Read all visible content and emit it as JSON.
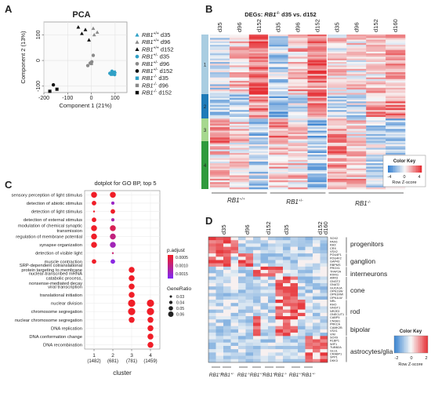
{
  "panels": {
    "a": "A",
    "b": "B",
    "c": "C",
    "d": "D"
  },
  "pca": {
    "title": "PCA",
    "xlabel": "Component 1 (21%)",
    "ylabel": "Component 2 (13%)",
    "xticks": [
      "-200",
      "-100",
      "0",
      "100"
    ],
    "yticks": [
      "-100",
      "0",
      "100"
    ],
    "legend": [
      {
        "genotype": "RB1",
        "sup": "+/+",
        "day": "d35",
        "shape": "triangle",
        "color": "#2fa0c6"
      },
      {
        "genotype": "RB1",
        "sup": "+/+",
        "day": "d96",
        "shape": "triangle",
        "color": "#8a8a8a"
      },
      {
        "genotype": "RB1",
        "sup": "+/+",
        "day": "d152",
        "shape": "triangle",
        "color": "#111111"
      },
      {
        "genotype": "RB1",
        "sup": "+/-",
        "day": "d35",
        "shape": "circle",
        "color": "#2fa0c6"
      },
      {
        "genotype": "RB1",
        "sup": "+/-",
        "day": "d96",
        "shape": "circle",
        "color": "#8a8a8a"
      },
      {
        "genotype": "RB1",
        "sup": "+/-",
        "day": "d152",
        "shape": "circle",
        "color": "#111111"
      },
      {
        "genotype": "RB1",
        "sup": "-/-",
        "day": "d35",
        "shape": "square",
        "color": "#2fa0c6"
      },
      {
        "genotype": "RB1",
        "sup": "-/-",
        "day": "d96",
        "shape": "square",
        "color": "#8a8a8a"
      },
      {
        "genotype": "RB1",
        "sup": "-/-",
        "day": "d152",
        "shape": "square",
        "color": "#111111"
      }
    ]
  },
  "heatmap_b": {
    "title_pre": "DEGs: ",
    "title_gene": "RB1",
    "title_sup": "-/-",
    "title_post": " d35 vs. d152",
    "columns": [
      "d35",
      "d96",
      "d152",
      "d35",
      "d96",
      "d152",
      "d35",
      "d96",
      "d152",
      "d160"
    ],
    "clusters": [
      {
        "label": "1",
        "color": "#a9cde1"
      },
      {
        "label": "2",
        "color": "#1f7bb8"
      },
      {
        "label": "3",
        "color": "#a6d88f"
      },
      {
        "label": "4",
        "color": "#2f9a3c"
      }
    ],
    "groups": [
      {
        "gene": "RB1",
        "sup": "+/+"
      },
      {
        "gene": "RB1",
        "sup": "+/-"
      },
      {
        "gene": "RB1",
        "sup": "-/-"
      }
    ],
    "key": {
      "title": "Color Key",
      "ticks": [
        "-4",
        "0",
        "4"
      ],
      "label": "Row Z-score"
    }
  },
  "dotplot": {
    "title": "dotplot for GO BP, top 5",
    "xlabel": "cluster",
    "terms": [
      "sensory perception of light stimulus",
      "detection of abiotic stimulus",
      "detection of light stimulus",
      "detection of external stimulus",
      "modulation of chemical synaptic transmission",
      "regulation of membrane potential",
      "synapse organization",
      "detection of visible light",
      "muscle contraction",
      "SRP-dependent cotranslational protein targeting to membrane",
      "nuclear-transcribed mRNA catabolic process, nonsense-mediated decay",
      "viral transcription",
      "translational initiation",
      "nuclear division",
      "chromosome segregation",
      "nuclear chromosome segregation",
      "DNA replication",
      "DNA conformation change",
      "DNA recombination"
    ],
    "clusters": [
      {
        "id": "1",
        "n": "(1482)"
      },
      {
        "id": "2",
        "n": "(681)"
      },
      {
        "id": "3",
        "n": "(781)"
      },
      {
        "id": "4",
        "n": "(1459)"
      }
    ],
    "padj_title": "p.adjust",
    "padj_ticks": [
      "0.0005",
      "0.0010",
      "0.0015"
    ],
    "size_title": "GeneRatio",
    "size_ticks": [
      "0.03",
      "0.04",
      "0.05",
      "0.06"
    ]
  },
  "heatmap_d": {
    "columns": [
      "d35",
      "d96",
      "d152",
      "d35",
      "d152",
      "d160"
    ],
    "genes": [
      {
        "name": "SOX2",
        "color": "#222222"
      },
      {
        "name": "PAX6",
        "color": "#222222"
      },
      {
        "name": "RAX",
        "color": "#2fa0c6"
      },
      {
        "name": "CRX",
        "color": "#2fa0c6"
      },
      {
        "name": "VSX2",
        "color": "#222222"
      },
      {
        "name": "POU4F1",
        "color": "#222222"
      },
      {
        "name": "POU4F2",
        "color": "#222222"
      },
      {
        "name": "GAP43",
        "color": "#222222"
      },
      {
        "name": "RBPMS",
        "color": "#222222"
      },
      {
        "name": "PROX1",
        "color": "#222222"
      },
      {
        "name": "TFAP2A",
        "color": "#222222"
      },
      {
        "name": "RXRG",
        "color": "#222222"
      },
      {
        "name": "ARR3",
        "color": "#222222"
      },
      {
        "name": "GNGT2",
        "color": "#2fa0c6"
      },
      {
        "name": "GNAT2",
        "color": "#2fa0c6"
      },
      {
        "name": "GUCA1A",
        "color": "#2fa0c6"
      },
      {
        "name": "OPN1SW",
        "color": "#222222"
      },
      {
        "name": "OPN1MW",
        "color": "#222222"
      },
      {
        "name": "OPN1LW",
        "color": "#2fa0c6"
      },
      {
        "name": "NRL",
        "color": "#222222"
      },
      {
        "name": "RHO",
        "color": "#2fa0c6"
      },
      {
        "name": "GNGT1",
        "color": "#2fa0c6"
      },
      {
        "name": "NR2E3",
        "color": "#2fa0c6"
      },
      {
        "name": "ONECUT1",
        "color": "#222222"
      },
      {
        "name": "CABP5",
        "color": "#222222"
      },
      {
        "name": "CNGB1",
        "color": "#222222"
      },
      {
        "name": "PRKCA",
        "color": "#222222"
      },
      {
        "name": "CAMK2B",
        "color": "#222222"
      },
      {
        "name": "VSX1",
        "color": "#222222"
      },
      {
        "name": "VIM",
        "color": "#2fa0c6"
      },
      {
        "name": "SOX9",
        "color": "#222222"
      },
      {
        "name": "RLBP1",
        "color": "#222222"
      },
      {
        "name": "WIF1",
        "color": "#222222"
      },
      {
        "name": "TUBB2A",
        "color": "#222222"
      },
      {
        "name": "GLUL",
        "color": "#2fa0c6"
      },
      {
        "name": "CRABP1",
        "color": "#2fa0c6"
      },
      {
        "name": "SPP1",
        "color": "#222222"
      },
      {
        "name": "DKK3",
        "color": "#222222"
      }
    ],
    "celltypes": [
      {
        "label": "progenitors"
      },
      {
        "label": "ganglion"
      },
      {
        "label": "interneurons"
      },
      {
        "label": "cone"
      },
      {
        "label": "rod"
      },
      {
        "label": "bipolar"
      },
      {
        "label": "astrocytes/glia"
      }
    ],
    "groups": [
      {
        "gene": "RB1",
        "sup": "+/+"
      },
      {
        "gene": "RB1",
        "sup": "+/-"
      },
      {
        "gene": "RB1",
        "sup": "-/-"
      },
      {
        "gene": "RB1",
        "sup": "+/+"
      },
      {
        "gene": "RB1",
        "sup": "+/-"
      },
      {
        "gene": "RB1",
        "sup": "-/-"
      },
      {
        "gene": "RB1",
        "sup": "+/+"
      },
      {
        "gene": "RB1",
        "sup": "+/-"
      }
    ],
    "key": {
      "title": "Color Key",
      "ticks": [
        "-2",
        "0",
        "2"
      ],
      "label": "Row Z-score"
    }
  },
  "chart_data": [
    {
      "type": "scatter",
      "title": "PCA",
      "xlabel": "Component 1 (21%)",
      "ylabel": "Component 2 (13%)",
      "xlim": [
        -200,
        150
      ],
      "ylim": [
        -125,
        150
      ],
      "series": [
        {
          "name": "RB1+/+ d35",
          "x": [
            93,
            85,
            100
          ],
          "y": [
            -48,
            -52,
            -44
          ]
        },
        {
          "name": "RB1+/+ d96",
          "x": [
            8,
            25,
            12
          ],
          "y": [
            125,
            110,
            100
          ]
        },
        {
          "name": "RB1+/+ d152",
          "x": [
            -55,
            -40,
            -25,
            -10
          ],
          "y": [
            130,
            105,
            120,
            80
          ]
        },
        {
          "name": "RB1+/- d35",
          "x": [
            78,
            98,
            87
          ],
          "y": [
            -50,
            -55,
            -42
          ]
        },
        {
          "name": "RB1+/- d96",
          "x": [
            -15,
            -5,
            2,
            8
          ],
          "y": [
            -20,
            -10,
            -5,
            20
          ]
        },
        {
          "name": "RB1+/- d152",
          "x": [
            -160
          ],
          "y": [
            -95
          ]
        },
        {
          "name": "RB1-/- d35",
          "x": [
            85,
            96
          ],
          "y": [
            -54,
            -46
          ]
        },
        {
          "name": "RB1-/- d96",
          "x": [
            0
          ],
          "y": [
            -12
          ]
        },
        {
          "name": "RB1-/- d152",
          "x": [
            -175,
            -145
          ],
          "y": [
            -120,
            -112
          ]
        }
      ]
    },
    {
      "type": "scatter",
      "title": "dotplot for GO BP, top 5",
      "xlabel": "cluster",
      "categories": [
        "1",
        "2",
        "3",
        "4"
      ],
      "points": [
        {
          "term": "sensory perception of light stimulus",
          "cluster": "1",
          "gene_ratio": 0.05,
          "p_adjust": 0.0001
        },
        {
          "term": "sensory perception of light stimulus",
          "cluster": "2",
          "gene_ratio": 0.05,
          "p_adjust": 0.0001
        },
        {
          "term": "detection of abiotic stimulus",
          "cluster": "1",
          "gene_ratio": 0.04,
          "p_adjust": 0.0001
        },
        {
          "term": "detection of abiotic stimulus",
          "cluster": "2",
          "gene_ratio": 0.03,
          "p_adjust": 0.0012
        },
        {
          "term": "detection of light stimulus",
          "cluster": "1",
          "gene_ratio": 0.02,
          "p_adjust": 0.0001
        },
        {
          "term": "detection of light stimulus",
          "cluster": "2",
          "gene_ratio": 0.04,
          "p_adjust": 0.0001
        },
        {
          "term": "detection of external stimulus",
          "cluster": "1",
          "gene_ratio": 0.04,
          "p_adjust": 0.0001
        },
        {
          "term": "detection of external stimulus",
          "cluster": "2",
          "gene_ratio": 0.03,
          "p_adjust": 0.001
        },
        {
          "term": "modulation of chemical synaptic transmission",
          "cluster": "1",
          "gene_ratio": 0.05,
          "p_adjust": 0.0001
        },
        {
          "term": "modulation of chemical synaptic transmission",
          "cluster": "2",
          "gene_ratio": 0.05,
          "p_adjust": 0.0004
        },
        {
          "term": "regulation of membrane potential",
          "cluster": "1",
          "gene_ratio": 0.05,
          "p_adjust": 0.0001
        },
        {
          "term": "regulation of membrane potential",
          "cluster": "2",
          "gene_ratio": 0.05,
          "p_adjust": 0.0007
        },
        {
          "term": "synapse organization",
          "cluster": "1",
          "gene_ratio": 0.05,
          "p_adjust": 0.0001
        },
        {
          "term": "synapse organization",
          "cluster": "2",
          "gene_ratio": 0.05,
          "p_adjust": 0.0011
        },
        {
          "term": "detection of visible light",
          "cluster": "2",
          "gene_ratio": 0.02,
          "p_adjust": 0.0006
        },
        {
          "term": "muscle contraction",
          "cluster": "1",
          "gene_ratio": 0.04,
          "p_adjust": 0.0001
        },
        {
          "term": "muscle contraction",
          "cluster": "2",
          "gene_ratio": 0.04,
          "p_adjust": 0.0014
        },
        {
          "term": "SRP-dependent cotranslational protein targeting to membrane",
          "cluster": "3",
          "gene_ratio": 0.05,
          "p_adjust": 0.0001
        },
        {
          "term": "nuclear-transcribed mRNA catabolic process, nonsense-mediated decay",
          "cluster": "3",
          "gene_ratio": 0.05,
          "p_adjust": 0.0001
        },
        {
          "term": "viral transcription",
          "cluster": "3",
          "gene_ratio": 0.05,
          "p_adjust": 0.0001
        },
        {
          "term": "translational initiation",
          "cluster": "3",
          "gene_ratio": 0.05,
          "p_adjust": 0.0001
        },
        {
          "term": "nuclear division",
          "cluster": "3",
          "gene_ratio": 0.06,
          "p_adjust": 0.0001
        },
        {
          "term": "nuclear division",
          "cluster": "4",
          "gene_ratio": 0.06,
          "p_adjust": 0.0001
        },
        {
          "term": "chromosome segregation",
          "cluster": "3",
          "gene_ratio": 0.06,
          "p_adjust": 0.0001
        },
        {
          "term": "chromosome segregation",
          "cluster": "4",
          "gene_ratio": 0.06,
          "p_adjust": 0.0001
        },
        {
          "term": "nuclear chromosome segregation",
          "cluster": "3",
          "gene_ratio": 0.05,
          "p_adjust": 0.0001
        },
        {
          "term": "nuclear chromosome segregation",
          "cluster": "4",
          "gene_ratio": 0.05,
          "p_adjust": 0.0001
        },
        {
          "term": "DNA replication",
          "cluster": "4",
          "gene_ratio": 0.05,
          "p_adjust": 0.0001
        },
        {
          "term": "DNA conformation change",
          "cluster": "4",
          "gene_ratio": 0.05,
          "p_adjust": 0.0001
        },
        {
          "term": "DNA recombination",
          "cluster": "4",
          "gene_ratio": 0.05,
          "p_adjust": 0.0001
        }
      ]
    }
  ]
}
